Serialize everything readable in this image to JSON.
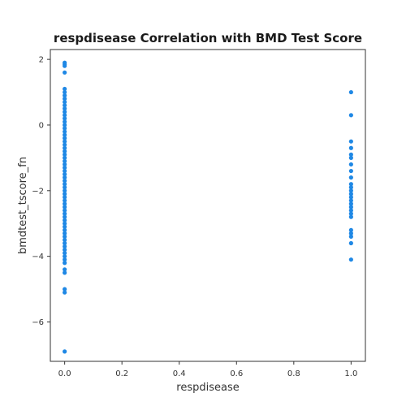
{
  "chart_data": {
    "type": "scatter",
    "title": "respdisease Correlation with BMD Test Score",
    "xlabel": "respdisease",
    "ylabel": "bmdtest_tscore_fn",
    "xlim": [
      -0.05,
      1.05
    ],
    "ylim": [
      -7.2,
      2.3
    ],
    "xticks": [
      0.0,
      0.2,
      0.4,
      0.6,
      0.8,
      1.0
    ],
    "xtick_labels": [
      "0.0",
      "0.2",
      "0.4",
      "0.6",
      "0.8",
      "1.0"
    ],
    "yticks": [
      -6,
      -4,
      -2,
      0,
      2
    ],
    "ytick_labels": [
      "−6",
      "−4",
      "−2",
      "0",
      "2"
    ],
    "grid": false,
    "point_color": "#1f88e5",
    "series": [
      {
        "x_value": 0,
        "y": [
          1.9,
          1.85,
          1.8,
          1.6,
          1.1,
          1.0,
          0.9,
          0.8,
          0.7,
          0.6,
          0.5,
          0.4,
          0.3,
          0.2,
          0.1,
          0.0,
          -0.1,
          -0.2,
          -0.3,
          -0.4,
          -0.5,
          -0.6,
          -0.7,
          -0.8,
          -0.9,
          -1.0,
          -1.1,
          -1.2,
          -1.3,
          -1.4,
          -1.5,
          -1.6,
          -1.7,
          -1.8,
          -1.9,
          -2.0,
          -2.1,
          -2.2,
          -2.3,
          -2.4,
          -2.5,
          -2.6,
          -2.7,
          -2.8,
          -2.9,
          -3.0,
          -3.1,
          -3.2,
          -3.3,
          -3.4,
          -3.5,
          -3.6,
          -3.7,
          -3.8,
          -3.9,
          -4.0,
          -4.1,
          -4.2,
          -4.4,
          -4.5,
          -5.0,
          -5.1,
          -6.9
        ]
      },
      {
        "x_value": 1,
        "y": [
          1.0,
          0.3,
          -0.5,
          -0.7,
          -0.9,
          -1.0,
          -1.2,
          -1.4,
          -1.6,
          -1.8,
          -1.9,
          -2.0,
          -2.1,
          -2.2,
          -2.3,
          -2.4,
          -2.5,
          -2.6,
          -2.7,
          -2.8,
          -3.2,
          -3.3,
          -3.4,
          -3.6,
          -4.1
        ]
      }
    ]
  }
}
